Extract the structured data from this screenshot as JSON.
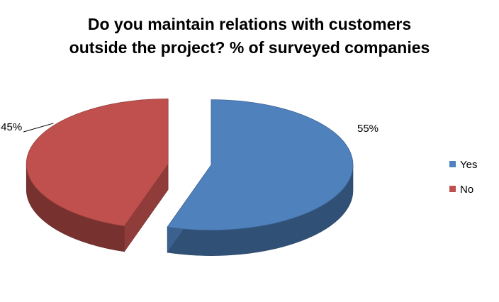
{
  "chart_data": {
    "type": "pie",
    "title_lines": [
      "Do you maintain relations with customers",
      "outside the project? % of surveyed companies"
    ],
    "slices": [
      {
        "label": "Yes",
        "value": 55,
        "data_label": "55%",
        "color": "#4F81BD"
      },
      {
        "label": "No",
        "value": 45,
        "data_label": "45%",
        "color": "#C0504D"
      }
    ],
    "exploded": true,
    "three_d": true,
    "legend": {
      "position": "right",
      "entries": [
        "Yes",
        "No"
      ]
    }
  }
}
